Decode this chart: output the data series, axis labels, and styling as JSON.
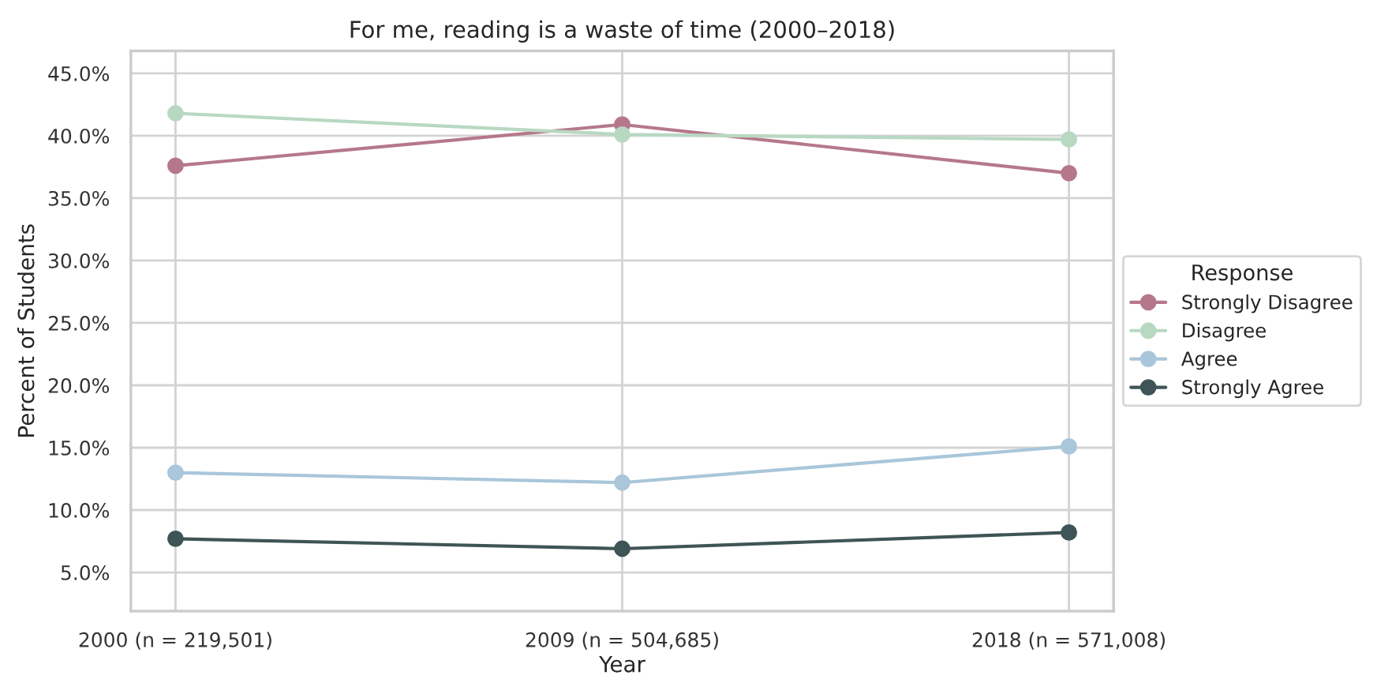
{
  "chart_data": {
    "type": "line",
    "title": "For me, reading is a waste of time (2000–2018)",
    "xlabel": "Year",
    "ylabel": "Percent of Students",
    "legend_title": "Response",
    "categories": [
      "2000 (n = 219,501)",
      "2009 (n = 504,685)",
      "2018 (n = 571,008)"
    ],
    "series": [
      {
        "name": "Strongly Disagree",
        "color": "#b5788b",
        "values": [
          37.6,
          40.9,
          37.0
        ]
      },
      {
        "name": "Disagree",
        "color": "#b8d8c2",
        "values": [
          41.8,
          40.1,
          39.7
        ]
      },
      {
        "name": "Agree",
        "color": "#a9c6da",
        "values": [
          13.0,
          12.2,
          15.1
        ]
      },
      {
        "name": "Strongly Agree",
        "color": "#3f5456",
        "values": [
          7.7,
          6.9,
          8.2
        ]
      }
    ],
    "ylim": [
      1.9,
      46.8
    ],
    "yticks": [
      {
        "value": 5,
        "label": "5.0%"
      },
      {
        "value": 10,
        "label": "10.0%"
      },
      {
        "value": 15,
        "label": "15.0%"
      },
      {
        "value": 20,
        "label": "20.0%"
      },
      {
        "value": 25,
        "label": "25.0%"
      },
      {
        "value": 30,
        "label": "30.0%"
      },
      {
        "value": 35,
        "label": "35.0%"
      },
      {
        "value": 40,
        "label": "40.0%"
      },
      {
        "value": 45,
        "label": "45.0%"
      }
    ],
    "grid": true,
    "legend": "right",
    "marker": "circle",
    "line_style": "solid"
  }
}
